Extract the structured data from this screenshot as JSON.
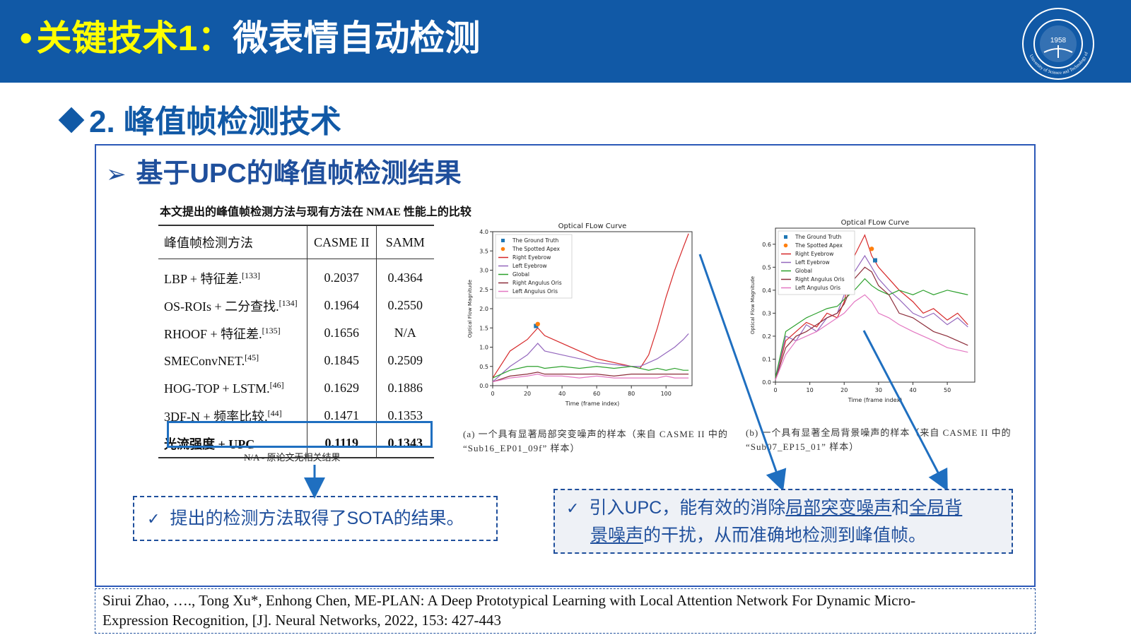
{
  "header": {
    "bullet": "•",
    "title_part1": "关键技术1：",
    "title_part2": "微表情自动检测",
    "logo_year": "1958",
    "logo_text": "University of Science and Technology of China"
  },
  "section": {
    "heading": "2. 峰值帧检测技术"
  },
  "subsection": {
    "arrow": "➢",
    "heading": "基于UPC的峰值帧检测结果"
  },
  "table": {
    "caption": "本文提出的峰值帧检测方法与现有方法在 NMAE 性能上的比较",
    "headers": [
      "峰值帧检测方法",
      "CASME II",
      "SAMM"
    ],
    "rows": [
      {
        "method": "LBP + 特征差.",
        "ref": "[133]",
        "casme": "0.2037",
        "samm": "0.4364"
      },
      {
        "method": "OS-ROIs + 二分查找.",
        "ref": "[134]",
        "casme": "0.1964",
        "samm": "0.2550"
      },
      {
        "method": "RHOOF + 特征差.",
        "ref": "[135]",
        "casme": "0.1656",
        "samm": "N/A"
      },
      {
        "method": "SMEConvNET.",
        "ref": "[45]",
        "casme": "0.1845",
        "samm": "0.2509"
      },
      {
        "method": "HOG-TOP + LSTM.",
        "ref": "[46]",
        "casme": "0.1629",
        "samm": "0.1886"
      },
      {
        "method": "3DF-N + 频率比较.",
        "ref": "[44]",
        "casme": "0.1471",
        "samm": "0.1353"
      }
    ],
    "best": {
      "method": "光流强度 + UPC",
      "casme": "0.1119",
      "samm": "0.1343"
    },
    "note": "N/A - 原论文无相关结果"
  },
  "charts": {
    "caption_a_line1": "(a) 一个具有显著局部突变噪声的样本（来自 CASME II 中的",
    "caption_a_line2": "“Sub16_EP01_09f” 样本）",
    "caption_b_line1": "(b) 一个具有显著全局背景噪声的样本（来自 CASME II 中的",
    "caption_b_line2": "“Sub07_EP15_01” 样本）"
  },
  "chart_data": [
    {
      "type": "line",
      "title": "Optical FLow Curve",
      "xlabel": "Time (frame index)",
      "ylabel": "Optical Flow Magnitude",
      "xlim": [
        0,
        115
      ],
      "ylim": [
        0,
        4.0
      ],
      "xticks": [
        0,
        20,
        40,
        60,
        80,
        100
      ],
      "yticks": [
        "0.0",
        "0.5",
        "1.0",
        "1.5",
        "2.0",
        "2.5",
        "3.0",
        "3.5",
        "4.0"
      ],
      "legend_position": "top-left",
      "x": [
        0,
        10,
        20,
        26,
        30,
        40,
        50,
        60,
        70,
        80,
        85,
        90,
        95,
        100,
        105,
        110,
        113
      ],
      "series": [
        {
          "name": "Right Eyebrow",
          "color": "#d62728",
          "values": [
            0.2,
            0.9,
            1.2,
            1.5,
            1.3,
            1.1,
            0.9,
            0.7,
            0.6,
            0.5,
            0.45,
            0.8,
            1.5,
            2.3,
            3.0,
            3.6,
            3.95
          ]
        },
        {
          "name": "Left Eyebrow",
          "color": "#9467bd",
          "values": [
            0.1,
            0.5,
            0.8,
            1.1,
            0.9,
            0.8,
            0.7,
            0.6,
            0.55,
            0.5,
            0.5,
            0.6,
            0.7,
            0.85,
            1.0,
            1.2,
            1.35
          ]
        },
        {
          "name": "Global",
          "color": "#2ca02c",
          "values": [
            0.2,
            0.4,
            0.5,
            0.5,
            0.45,
            0.5,
            0.45,
            0.5,
            0.45,
            0.5,
            0.45,
            0.4,
            0.45,
            0.4,
            0.45,
            0.4,
            0.4
          ]
        },
        {
          "name": "Right Angulus Oris",
          "color": "#8c2d3a",
          "values": [
            0.1,
            0.25,
            0.3,
            0.35,
            0.3,
            0.3,
            0.3,
            0.3,
            0.25,
            0.3,
            0.3,
            0.3,
            0.3,
            0.3,
            0.3,
            0.3,
            0.3
          ]
        },
        {
          "name": "Left Angulus Oris",
          "color": "#e377c2",
          "values": [
            0.1,
            0.2,
            0.25,
            0.3,
            0.25,
            0.25,
            0.2,
            0.25,
            0.2,
            0.2,
            0.2,
            0.2,
            0.2,
            0.25,
            0.2,
            0.2,
            0.2
          ]
        }
      ],
      "markers": [
        {
          "name": "The Ground Truth",
          "color": "#1f77b4",
          "x": 25,
          "y": 1.55
        },
        {
          "name": "The Spotted Apex",
          "color": "#ff7f0e",
          "x": 26,
          "y": 1.6
        }
      ]
    },
    {
      "type": "line",
      "title": "Optical FLow Curve",
      "xlabel": "Time (frame index)",
      "ylabel": "Optical Flow Magnitude",
      "xlim": [
        0,
        58
      ],
      "ylim": [
        0,
        0.67
      ],
      "xticks": [
        0,
        10,
        20,
        30,
        40,
        50
      ],
      "yticks": [
        "0.0",
        "0.1",
        "0.2",
        "0.3",
        "0.4",
        "0.5",
        "0.6"
      ],
      "legend_position": "top-left",
      "x": [
        0,
        3,
        6,
        9,
        12,
        15,
        18,
        20,
        23,
        26,
        28,
        30,
        33,
        36,
        40,
        43,
        46,
        50,
        53,
        56
      ],
      "series": [
        {
          "name": "Right Eyebrow",
          "color": "#d62728",
          "values": [
            0.01,
            0.18,
            0.22,
            0.26,
            0.24,
            0.3,
            0.28,
            0.35,
            0.55,
            0.64,
            0.55,
            0.5,
            0.45,
            0.4,
            0.35,
            0.3,
            0.32,
            0.27,
            0.3,
            0.25
          ]
        },
        {
          "name": "Left Eyebrow",
          "color": "#9467bd",
          "values": [
            0.01,
            0.2,
            0.18,
            0.25,
            0.22,
            0.28,
            0.3,
            0.38,
            0.48,
            0.55,
            0.5,
            0.45,
            0.4,
            0.36,
            0.3,
            0.28,
            0.3,
            0.25,
            0.28,
            0.24
          ]
        },
        {
          "name": "Global",
          "color": "#2ca02c",
          "values": [
            0.02,
            0.22,
            0.25,
            0.28,
            0.3,
            0.32,
            0.33,
            0.36,
            0.4,
            0.45,
            0.42,
            0.4,
            0.38,
            0.4,
            0.38,
            0.4,
            0.38,
            0.4,
            0.39,
            0.38
          ]
        },
        {
          "name": "Right Angulus Oris",
          "color": "#8c2d3a",
          "values": [
            0.01,
            0.15,
            0.2,
            0.22,
            0.25,
            0.28,
            0.3,
            0.34,
            0.45,
            0.5,
            0.48,
            0.42,
            0.38,
            0.3,
            0.28,
            0.25,
            0.22,
            0.2,
            0.18,
            0.16
          ]
        },
        {
          "name": "Left Angulus Oris",
          "color": "#e377c2",
          "values": [
            0.01,
            0.12,
            0.18,
            0.2,
            0.22,
            0.25,
            0.28,
            0.3,
            0.35,
            0.38,
            0.35,
            0.3,
            0.28,
            0.25,
            0.22,
            0.2,
            0.18,
            0.15,
            0.14,
            0.13
          ]
        }
      ],
      "markers": [
        {
          "name": "The Ground Truth",
          "color": "#1f77b4",
          "x": 29,
          "y": 0.53
        },
        {
          "name": "The Spotted Apex",
          "color": "#ff7f0e",
          "x": 28,
          "y": 0.58
        }
      ]
    }
  ],
  "callouts": {
    "check": "✓",
    "left_text": "提出的检测方法取得了SOTA的结果。",
    "right_pre": "引入UPC，能有效的消除",
    "right_ul1": "局部突变噪声",
    "right_mid": "和",
    "right_ul2a": "全局背",
    "right_ul2b": "景噪声",
    "right_post": "的干扰，从而准确地检测到峰值帧。"
  },
  "reference": {
    "line1": "Sirui Zhao, …., Tong Xu*, Enhong Chen, ME-PLAN: A Deep Prototypical Learning with Local Attention Network For Dynamic Micro-",
    "line2": "Expression Recognition, [J]. Neural Networks, 2022, 153: 427-443"
  },
  "colors": {
    "banner_blue": "#1159a6",
    "title_yellow": "#ffff00",
    "heading_blue": "#1f4f9c",
    "arrow_blue": "#1f6fc0"
  }
}
